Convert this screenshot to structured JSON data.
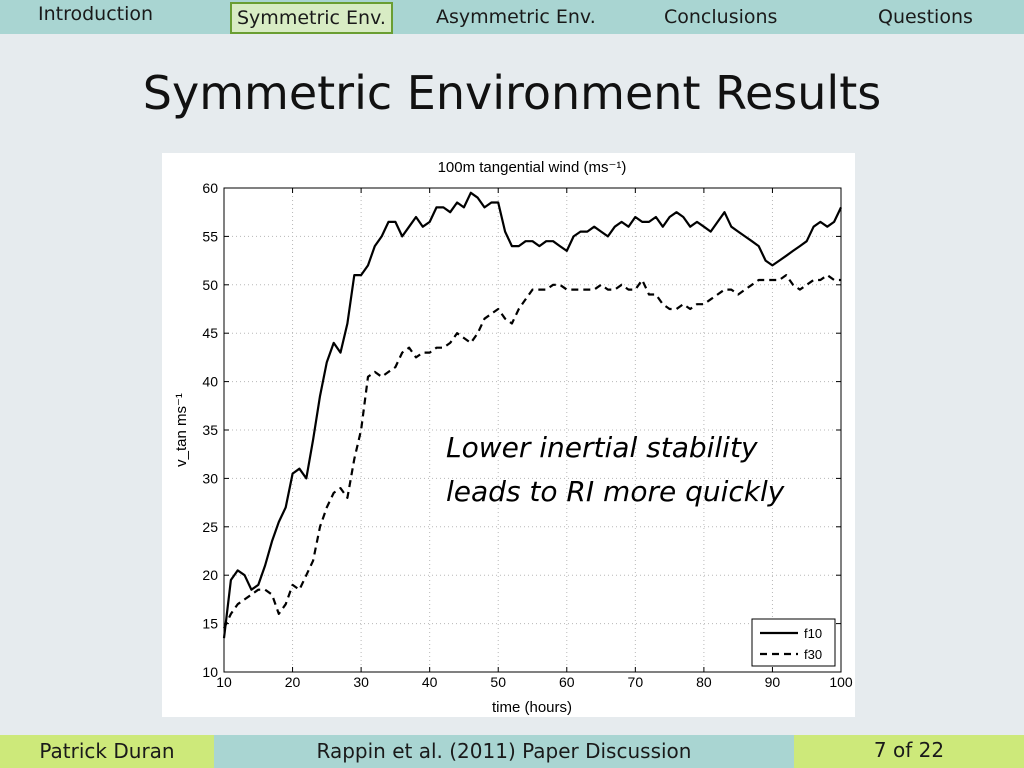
{
  "nav": {
    "items": [
      {
        "label": "Introduction"
      },
      {
        "label": "Symmetric Env."
      },
      {
        "label": "Asymmetric Env."
      },
      {
        "label": "Conclusions"
      },
      {
        "label": "Questions"
      }
    ],
    "active_index": 1,
    "active_color": "#6a9e32"
  },
  "slide": {
    "title": "Symmetric Environment Results"
  },
  "annotation": {
    "line1": "Lower inertial stability",
    "line2": "leads to RI more quickly"
  },
  "footer": {
    "author": "Patrick Duran",
    "talk": "Rappin et al. (2011) Paper Discussion",
    "page": "7 of 22",
    "left_color": "#cde97a",
    "mid_color": "#a9d5d2",
    "right_color": "#cde97a"
  },
  "chart_data": {
    "type": "line",
    "title": "100m tangential wind (ms⁻¹)",
    "xlabel": "time (hours)",
    "ylabel": "v_tan ms⁻¹",
    "xlim": [
      10,
      100
    ],
    "ylim": [
      10,
      60
    ],
    "xticks": [
      10,
      20,
      30,
      40,
      50,
      60,
      70,
      80,
      90,
      100
    ],
    "yticks": [
      10,
      15,
      20,
      25,
      30,
      35,
      40,
      45,
      50,
      55,
      60
    ],
    "grid": true,
    "legend_position": "bottom-right",
    "series": [
      {
        "name": "f10",
        "style": "solid",
        "x": [
          10,
          11,
          12,
          13,
          14,
          15,
          16,
          17,
          18,
          19,
          20,
          21,
          22,
          23,
          24,
          25,
          26,
          27,
          28,
          29,
          30,
          31,
          32,
          33,
          34,
          35,
          36,
          37,
          38,
          39,
          40,
          41,
          42,
          43,
          44,
          45,
          46,
          47,
          48,
          49,
          50,
          51,
          52,
          53,
          54,
          55,
          56,
          57,
          58,
          59,
          60,
          61,
          62,
          63,
          64,
          65,
          66,
          67,
          68,
          69,
          70,
          71,
          72,
          73,
          74,
          75,
          76,
          77,
          78,
          79,
          80,
          81,
          82,
          83,
          84,
          85,
          86,
          87,
          88,
          89,
          90,
          91,
          92,
          93,
          94,
          95,
          96,
          97,
          98,
          99,
          100
        ],
        "values": [
          13.5,
          19.5,
          20.5,
          20,
          18.5,
          19,
          21,
          23.5,
          25.5,
          27,
          30.5,
          31,
          30,
          34,
          38.5,
          42,
          44,
          43,
          46,
          51,
          51,
          52,
          54,
          55,
          56.5,
          56.5,
          55,
          56,
          57,
          56,
          56.5,
          58,
          58,
          57.5,
          58.5,
          58,
          59.5,
          59,
          58,
          58.5,
          58.5,
          55.5,
          54,
          54,
          54.5,
          54.5,
          54,
          54.5,
          54.5,
          54,
          53.5,
          55,
          55.5,
          55.5,
          56,
          55.5,
          55,
          56,
          56.5,
          56,
          57,
          56.5,
          56.5,
          57,
          56,
          57,
          57.5,
          57,
          56,
          56.5,
          56,
          55.5,
          56.5,
          57.5,
          56,
          55.5,
          55,
          54.5,
          54,
          52.5,
          52,
          52.5,
          53,
          53.5,
          54,
          54.5,
          56,
          56.5,
          56,
          56.5,
          58
        ]
      },
      {
        "name": "f30",
        "style": "dashed",
        "x": [
          10,
          11,
          12,
          13,
          14,
          15,
          16,
          17,
          18,
          19,
          20,
          21,
          22,
          23,
          24,
          25,
          26,
          27,
          28,
          29,
          30,
          31,
          32,
          33,
          34,
          35,
          36,
          37,
          38,
          39,
          40,
          41,
          42,
          43,
          44,
          45,
          46,
          47,
          48,
          49,
          50,
          51,
          52,
          53,
          54,
          55,
          56,
          57,
          58,
          59,
          60,
          61,
          62,
          63,
          64,
          65,
          66,
          67,
          68,
          69,
          70,
          71,
          72,
          73,
          74,
          75,
          76,
          77,
          78,
          79,
          80,
          81,
          82,
          83,
          84,
          85,
          86,
          87,
          88,
          89,
          90,
          91,
          92,
          93,
          94,
          95,
          96,
          97,
          98,
          99,
          100
        ],
        "values": [
          14.5,
          16,
          17,
          17.5,
          18,
          18.5,
          18.5,
          18,
          16,
          17,
          19,
          18.5,
          20,
          21.5,
          25,
          27,
          28.5,
          29,
          28,
          32,
          35,
          40.5,
          41,
          40.5,
          41,
          41.5,
          43,
          43.5,
          42.5,
          43,
          43,
          43.5,
          43.5,
          44,
          45,
          44.5,
          44,
          45,
          46.5,
          47,
          47.5,
          46.5,
          46,
          47.5,
          48.5,
          49.5,
          49.5,
          49.5,
          50,
          50,
          49.5,
          49.5,
          49.5,
          49.5,
          49.5,
          50,
          49.5,
          49.5,
          50,
          49.5,
          49.5,
          50.5,
          49,
          49,
          48,
          47.5,
          47.5,
          48,
          47.5,
          48,
          48,
          48.5,
          49,
          49.5,
          49.5,
          49,
          49.5,
          50,
          50.5,
          50.5,
          50.5,
          50.5,
          51,
          50,
          49.5,
          50,
          50.5,
          50.5,
          51,
          50.5,
          50.5
        ]
      }
    ]
  }
}
